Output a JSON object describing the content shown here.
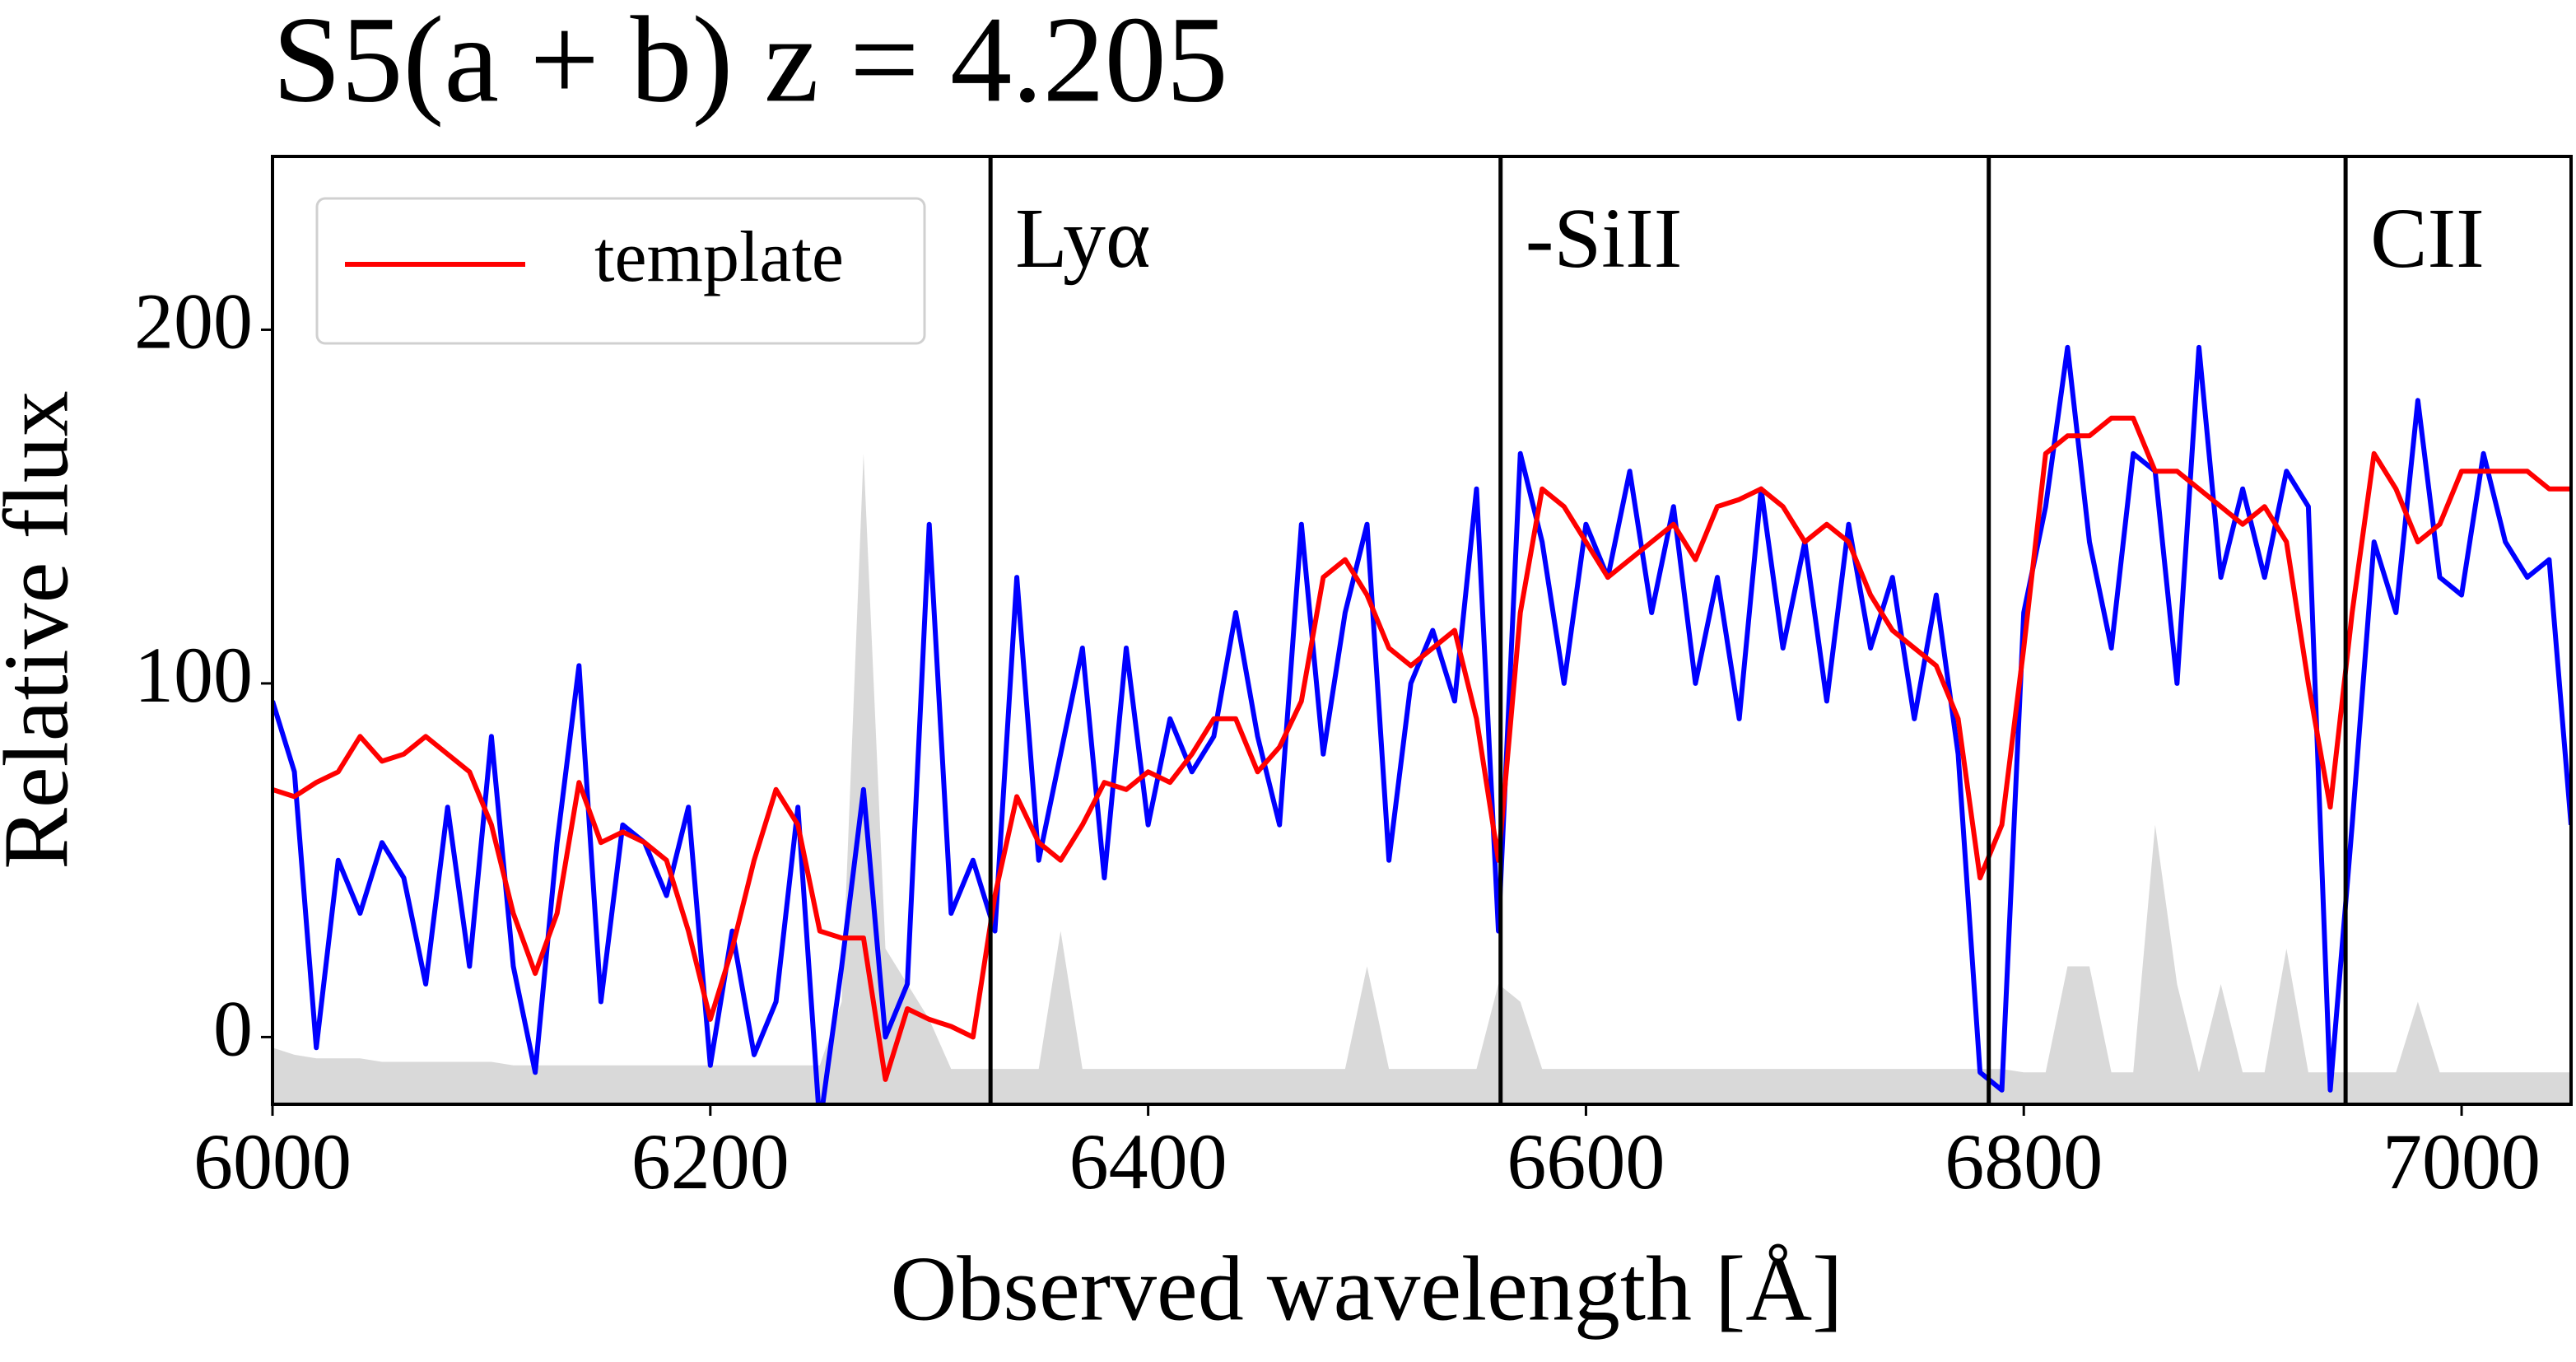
{
  "chart_data": {
    "type": "line",
    "title": "S5(a + b) z = 4.205",
    "xlabel": "Observed wavelength  [Å]",
    "ylabel": "Relative flux",
    "xlim": [
      6000,
      7050
    ],
    "ylim": [
      -19,
      249
    ],
    "xticks": [
      6000,
      6200,
      6400,
      6600,
      6800,
      7000
    ],
    "yticks": [
      0,
      100,
      200
    ],
    "legend": "upper left",
    "x": [
      6000,
      6010,
      6020,
      6030,
      6040,
      6050,
      6060,
      6070,
      6080,
      6090,
      6100,
      6110,
      6120,
      6130,
      6140,
      6150,
      6160,
      6170,
      6180,
      6190,
      6200,
      6210,
      6220,
      6230,
      6240,
      6250,
      6260,
      6270,
      6280,
      6290,
      6300,
      6310,
      6320,
      6330,
      6340,
      6350,
      6360,
      6370,
      6380,
      6390,
      6400,
      6410,
      6420,
      6430,
      6440,
      6450,
      6460,
      6470,
      6480,
      6490,
      6500,
      6510,
      6520,
      6530,
      6540,
      6550,
      6560,
      6570,
      6580,
      6590,
      6600,
      6610,
      6620,
      6630,
      6640,
      6650,
      6660,
      6670,
      6680,
      6690,
      6700,
      6710,
      6720,
      6730,
      6740,
      6750,
      6760,
      6770,
      6780,
      6790,
      6800,
      6810,
      6820,
      6830,
      6840,
      6850,
      6860,
      6870,
      6880,
      6890,
      6900,
      6910,
      6920,
      6930,
      6940,
      6950,
      6960,
      6970,
      6980,
      6990,
      7000,
      7010,
      7020,
      7030,
      7040,
      7050
    ],
    "series": [
      {
        "style": "area",
        "color": "#d9d9d9",
        "values": [
          -3,
          -5,
          -6,
          -6,
          -6,
          -7,
          -7,
          -7,
          -7,
          -7,
          -7,
          -8,
          -8,
          -8,
          -8,
          -8,
          -8,
          -8,
          -8,
          -8,
          -8,
          -8,
          -8,
          -8,
          -8,
          -8,
          10,
          165,
          25,
          15,
          5,
          -9,
          -9,
          -9,
          -9,
          -9,
          30,
          -9,
          -9,
          -9,
          -9,
          -9,
          -9,
          -9,
          -9,
          -9,
          -9,
          -9,
          -9,
          -9,
          20,
          -9,
          -9,
          -9,
          -9,
          -9,
          15,
          10,
          -9,
          -9,
          -9,
          -9,
          -9,
          -9,
          -9,
          -9,
          -9,
          -9,
          -9,
          -9,
          -9,
          -9,
          -9,
          -9,
          -9,
          -9,
          -9,
          -9,
          -9,
          -9,
          -10,
          -10,
          20,
          20,
          -10,
          -10,
          60,
          15,
          -10,
          15,
          -10,
          -10,
          25,
          -10,
          -10,
          -10,
          -10,
          -10,
          10,
          -10,
          -10,
          -10,
          -10,
          -10,
          -10,
          -10
        ]
      },
      {
        "style": "line",
        "color": "#0000ff",
        "values": [
          95,
          75,
          -3,
          50,
          35,
          55,
          45,
          15,
          65,
          20,
          85,
          20,
          -10,
          55,
          105,
          10,
          60,
          55,
          40,
          65,
          -8,
          30,
          -5,
          10,
          65,
          -25,
          20,
          70,
          0,
          15,
          145,
          35,
          50,
          30,
          130,
          50,
          80,
          110,
          45,
          110,
          60,
          90,
          75,
          85,
          120,
          85,
          60,
          145,
          80,
          120,
          145,
          50,
          100,
          115,
          95,
          155,
          30,
          165,
          140,
          100,
          145,
          130,
          160,
          120,
          150,
          100,
          130,
          90,
          155,
          110,
          140,
          95,
          145,
          110,
          130,
          90,
          125,
          80,
          -10,
          -15,
          120,
          150,
          195,
          140,
          110,
          165,
          160,
          100,
          195,
          130,
          155,
          130,
          160,
          150,
          -15,
          60,
          140,
          120,
          180,
          130,
          125,
          165,
          140,
          130,
          135,
          60
        ]
      },
      {
        "style": "line",
        "name": "template",
        "color": "#ff0000",
        "values": [
          70,
          68,
          72,
          75,
          85,
          78,
          80,
          85,
          80,
          75,
          60,
          35,
          18,
          35,
          72,
          55,
          58,
          55,
          50,
          30,
          5,
          25,
          50,
          70,
          60,
          30,
          28,
          28,
          -12,
          8,
          5,
          3,
          0,
          40,
          68,
          55,
          50,
          60,
          72,
          70,
          75,
          72,
          80,
          90,
          90,
          75,
          82,
          95,
          130,
          135,
          125,
          110,
          105,
          110,
          115,
          90,
          50,
          120,
          155,
          150,
          140,
          130,
          135,
          140,
          145,
          135,
          150,
          152,
          155,
          150,
          140,
          145,
          140,
          125,
          115,
          110,
          105,
          90,
          45,
          60,
          110,
          165,
          170,
          170,
          175,
          175,
          160,
          160,
          155,
          150,
          145,
          150,
          140,
          100,
          65,
          120,
          165,
          155,
          140,
          145,
          160,
          160,
          160,
          160,
          155,
          155
        ]
      }
    ],
    "vlines": [
      {
        "x": 6328,
        "label": "Lyα"
      },
      {
        "x": 6561,
        "label": "-SiII"
      },
      {
        "x": 6784
      },
      {
        "x": 6947,
        "label": "CII"
      }
    ]
  }
}
